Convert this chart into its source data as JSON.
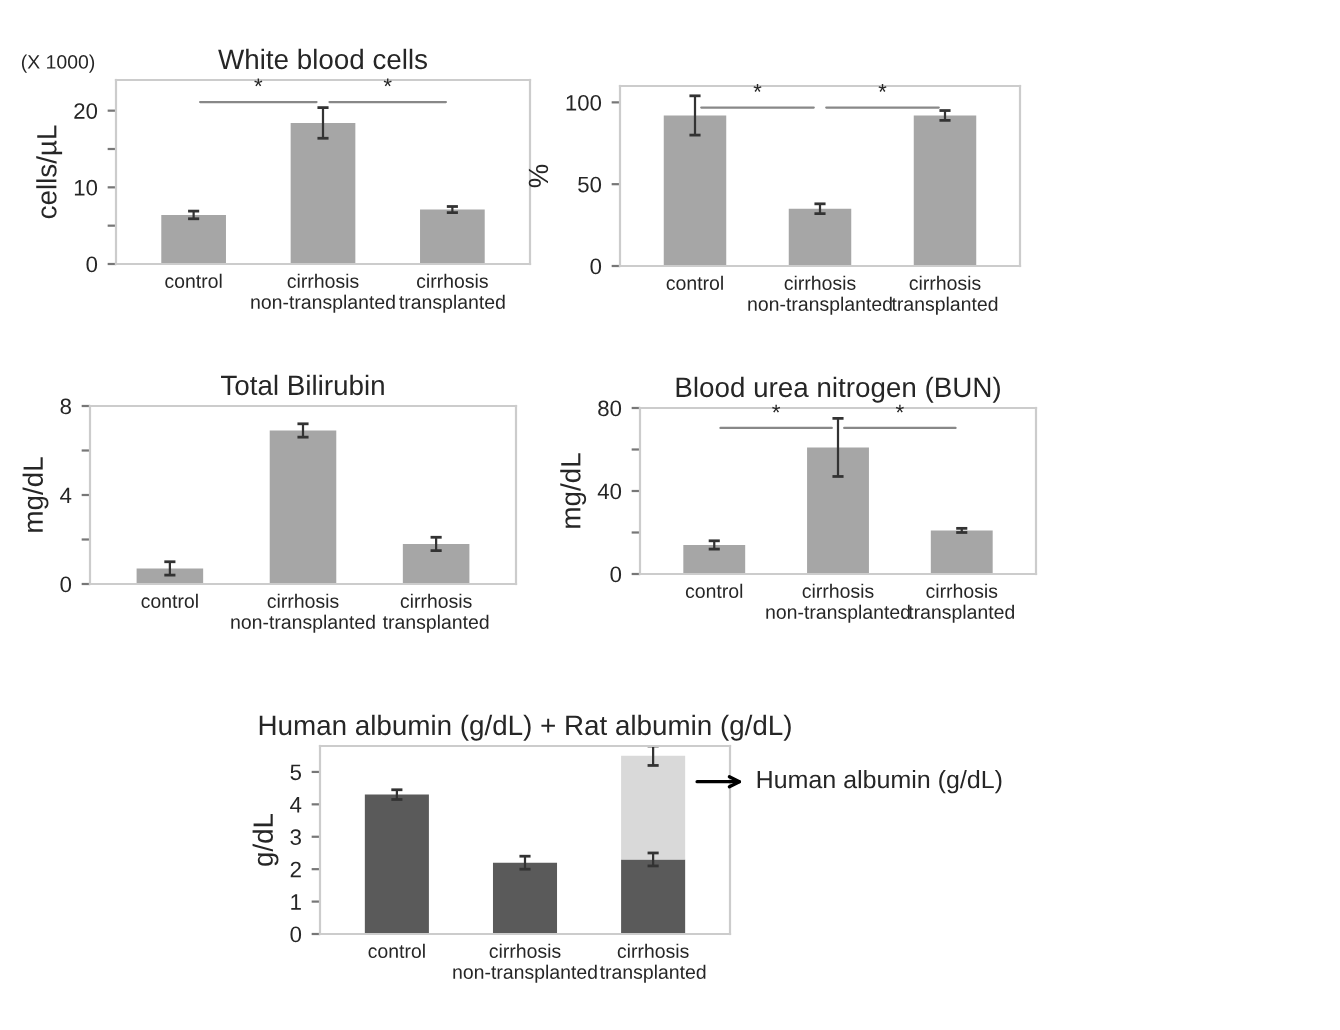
{
  "chart_data": [
    {
      "type": "bar",
      "title": "White blood cells",
      "ylabel": "cells/µL",
      "categories": [
        "control",
        "cirrhosis\nnon-transplanted",
        "cirrhosis\ntransplanted"
      ],
      "values": [
        6.4,
        18.4,
        7.1
      ],
      "errors": [
        0.5,
        2,
        0.4
      ],
      "color": "#a6a6a6",
      "ylim": [
        0,
        24
      ],
      "yticks": [
        0,
        {
          "value": 5,
          "label": null
        },
        10,
        {
          "value": 15,
          "label": null
        },
        20
      ],
      "annotations": [
        "(X 1000)",
        "*",
        "*"
      ],
      "grid": false,
      "legend": false
    },
    {
      "type": "bar",
      "ylabel": "%",
      "categories": [
        "control",
        "cirrhosis\nnon-transplanted",
        "cirrhosis\ntransplanted"
      ],
      "values": [
        92,
        35,
        92
      ],
      "errors": [
        12,
        3,
        3
      ],
      "color": "#a6a6a6",
      "ylim": [
        0,
        110
      ],
      "yticks": [
        0,
        50,
        100
      ],
      "annotations": [
        "*",
        "*"
      ],
      "grid": false,
      "legend": false
    },
    {
      "type": "bar",
      "title": "Total Bilirubin",
      "ylabel": "mg/dL",
      "categories": [
        "control",
        "cirrhosis\nnon-transplanted",
        "cirrhosis\ntransplanted"
      ],
      "values": [
        0.7,
        6.9,
        1.8
      ],
      "errors": [
        0.3,
        0.3,
        0.3
      ],
      "color": "#a6a6a6",
      "ylim": [
        0,
        8
      ],
      "yticks": [
        0,
        {
          "value": 2,
          "label": null
        },
        4,
        {
          "value": 6,
          "label": null
        },
        8
      ],
      "grid": false,
      "legend": false
    },
    {
      "type": "bar",
      "title": "Blood urea nitrogen (BUN)",
      "ylabel": "mg/dL",
      "categories": [
        "control",
        "cirrhosis\nnon-transplanted",
        "cirrhosis\ntransplanted"
      ],
      "values": [
        14,
        61,
        21
      ],
      "errors": [
        2,
        14,
        1
      ],
      "color": "#a6a6a6",
      "ylim": [
        0,
        80
      ],
      "yticks": [
        0,
        {
          "value": 20,
          "label": null
        },
        40,
        {
          "value": 60,
          "label": null
        },
        80
      ],
      "annotations": [
        "*",
        "*"
      ],
      "grid": false,
      "legend": false
    },
    {
      "type": "bar",
      "title": "Human albumin (g/dL) + Rat albumin (g/dL)",
      "ylabel": "g/dL",
      "categories": [
        "control",
        "cirrhosis\nnon-transplanted",
        "cirrhosis\ntransplanted"
      ],
      "stacked": true,
      "series": [
        {
          "color": "#5a5a5a",
          "values": [
            4.3,
            2.2,
            2.3
          ],
          "errors": [
            0.15,
            0.2,
            0.2
          ]
        },
        {
          "name": "Human albumin (g/dL)",
          "color": "#d9d9d9",
          "values": [
            null,
            null,
            3.2
          ],
          "errors": [
            null,
            null,
            0.3
          ]
        }
      ],
      "ylim": [
        0,
        5.8
      ],
      "yticks": [
        0,
        1,
        2,
        3,
        4,
        5
      ],
      "grid": false,
      "legend": false
    }
  ]
}
